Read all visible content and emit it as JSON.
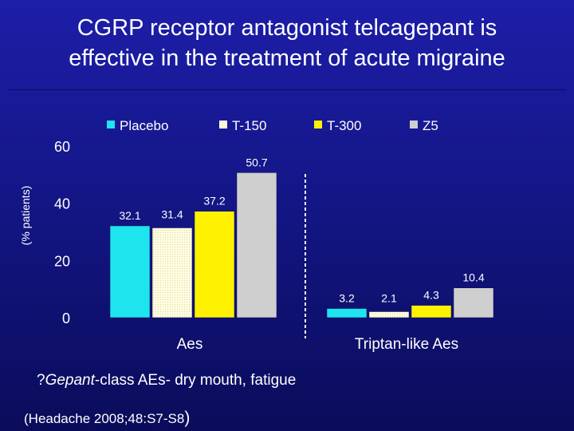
{
  "slide": {
    "title_line1": "CGRP receptor antagonist telcagepant is",
    "title_line2": "effective in the treatment of acute migraine",
    "footnote_prefix": "?",
    "footnote_italic": "Gepant",
    "footnote_rest": "-class AEs- dry mouth, fatigue",
    "citation_main": "(Headache 2008;48:S7-S8",
    "citation_close": ")"
  },
  "chart_data": {
    "type": "bar",
    "categories": [
      "Aes",
      "Triptan-like Aes"
    ],
    "series": [
      {
        "name": "Placebo",
        "values": [
          32.1,
          3.2
        ],
        "color": "#1ee4ee"
      },
      {
        "name": "T-150",
        "values": [
          31.4,
          2.1
        ],
        "color": "#fffde0"
      },
      {
        "name": "T-300",
        "values": [
          37.2,
          4.3
        ],
        "color": "#fff200"
      },
      {
        "name": "Z5",
        "values": [
          50.7,
          10.4
        ],
        "color": "#cfcfcf"
      }
    ],
    "data_labels": [
      [
        "32.1",
        "31.4",
        "37.2",
        "50.7"
      ],
      [
        "3.2",
        "2.1",
        "4.3",
        "10.4"
      ]
    ],
    "ylabel": "(% patients)",
    "yticks": [
      "0",
      "20",
      "40",
      "60"
    ],
    "ylim": [
      0,
      60
    ],
    "legend_position": "top",
    "separator": "dashed-vertical-line"
  }
}
